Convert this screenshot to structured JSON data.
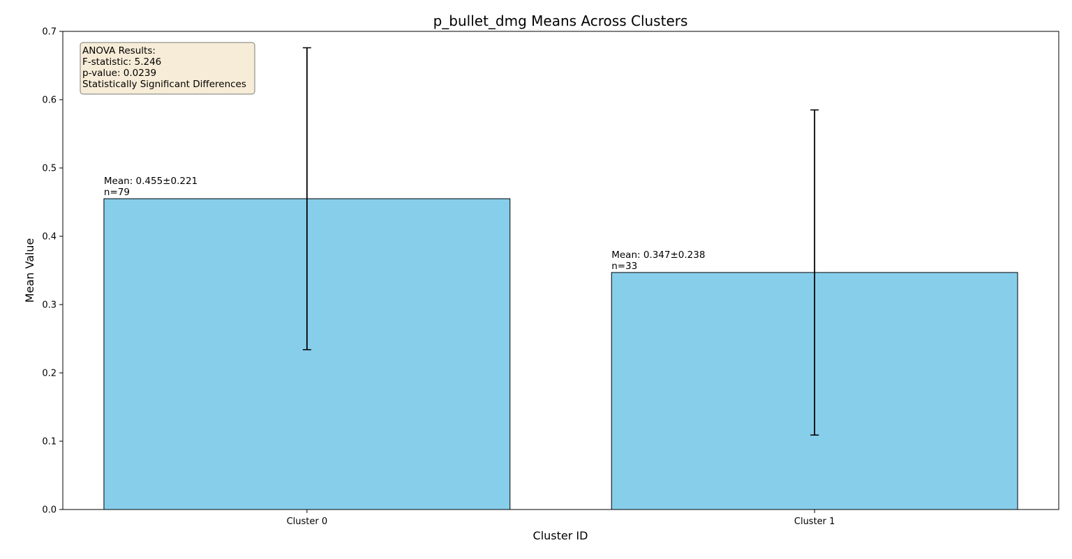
{
  "chart_data": {
    "type": "bar",
    "title": "p_bullet_dmg Means Across Clusters",
    "xlabel": "Cluster ID",
    "ylabel": "Mean Value",
    "categories": [
      "Cluster 0",
      "Cluster 1"
    ],
    "values": [
      0.455,
      0.347
    ],
    "errors": [
      0.221,
      0.238
    ],
    "bar_labels": [
      [
        "Mean: 0.455±0.221",
        "n=79"
      ],
      [
        "Mean: 0.347±0.238",
        "n=33"
      ]
    ],
    "ylim": [
      0,
      0.7
    ],
    "yticks": [
      0.0,
      0.1,
      0.2,
      0.3,
      0.4,
      0.5,
      0.6,
      0.7
    ],
    "ytick_labels": [
      "0.0",
      "0.1",
      "0.2",
      "0.3",
      "0.4",
      "0.5",
      "0.6",
      "0.7"
    ],
    "grid": false,
    "bar_color": "#87ceeb",
    "bar_edge_color": "#000000",
    "annotation": {
      "lines": [
        "ANOVA Results:",
        "F-statistic: 5.246",
        "p-value: 0.0239",
        "Statistically Significant Differences"
      ],
      "placement": "top-left",
      "background": "#f7ecd7",
      "border": "#7a7a7a"
    }
  }
}
